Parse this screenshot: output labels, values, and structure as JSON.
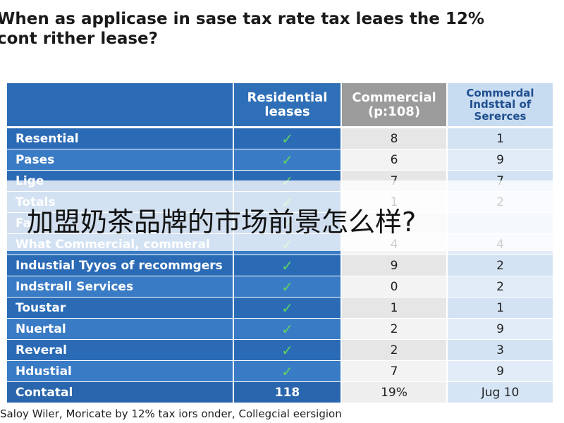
{
  "title": [
    "When as applicase in sase tax rate tax leaes the 12%",
    "cont rither lease?"
  ],
  "table": {
    "header": [
      [],
      [
        "Residential",
        "leases"
      ],
      [
        "Commercial",
        "(p:108)"
      ],
      [
        "Commerdal",
        "Indsttal of",
        "Sererces"
      ]
    ],
    "rows": [
      [
        "Resential",
        "✓",
        "8",
        "1"
      ],
      [
        "Pases",
        "✓",
        "6",
        "9"
      ],
      [
        "Lige",
        "✓",
        "7",
        "7"
      ],
      [
        "Totals",
        "✓",
        "1",
        "2"
      ],
      [
        "Fa",
        "✓"
      ],
      [
        "What Commercial, commeral",
        "✓",
        "4",
        "4"
      ],
      [
        "Industial Tyyos of recommgers",
        "✓",
        "9",
        "2"
      ],
      [
        "Indstrall Services",
        "✓",
        "0",
        "2"
      ],
      [
        "Toustar",
        "✓",
        "1",
        "1"
      ],
      [
        "Nuertal",
        "✓",
        "2",
        "9"
      ],
      [
        "Reveral",
        "✓",
        "2",
        "3"
      ],
      [
        "Hdustial",
        "✓",
        "7",
        "9"
      ],
      [
        "Contatal",
        "118",
        "19%",
        "Jug 10"
      ]
    ]
  },
  "caption": "Saloy Wiler, Moricate by 12% tax iors onder, Collegcial eersigion",
  "banner": "加盟奶茶品牌的市场前景怎么样?"
}
